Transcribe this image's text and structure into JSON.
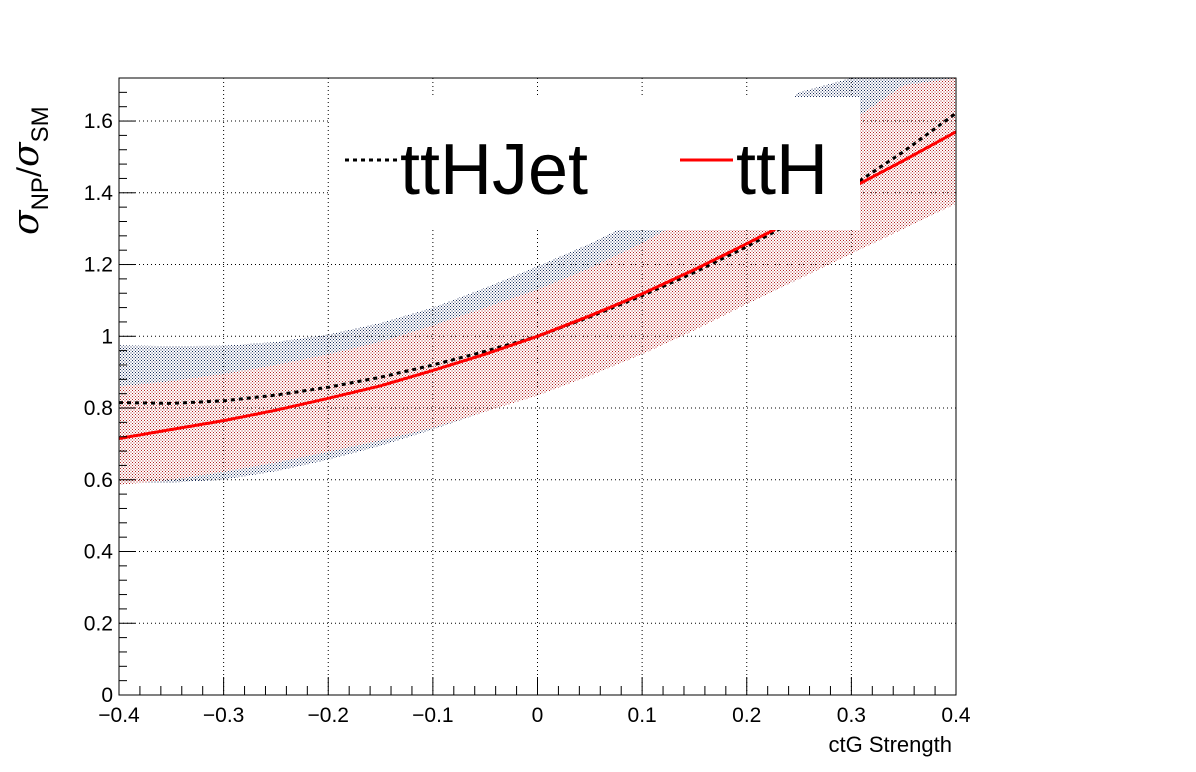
{
  "chart_data": {
    "type": "line",
    "title": "",
    "xlabel": "ctG Strength",
    "ylabel": "σ_NP/σ_SM",
    "ylabel_parts": {
      "sigma": "σ",
      "np_sub": "NP",
      "slash": "/",
      "sm_sub": "SM"
    },
    "xlim": [
      -0.4,
      0.4
    ],
    "ylim": [
      0,
      1.72
    ],
    "grid": true,
    "legend_placement": "top",
    "x_ticks": [
      -0.4,
      -0.3,
      -0.2,
      -0.1,
      0,
      0.1,
      0.2,
      0.3,
      0.4
    ],
    "x_tick_labels": [
      "−0.4",
      "−0.3",
      "−0.2",
      "−0.1",
      "0",
      "0.1",
      "0.2",
      "0.3",
      "0.4"
    ],
    "y_ticks": [
      0,
      0.2,
      0.4,
      0.6,
      0.8,
      1,
      1.2,
      1.4,
      1.6
    ],
    "y_tick_labels": [
      "0",
      "0.2",
      "0.4",
      "0.6",
      "0.8",
      "1",
      "1.2",
      "1.4",
      "1.6"
    ],
    "x": [
      -0.4,
      -0.35,
      -0.3,
      -0.25,
      -0.2,
      -0.15,
      -0.1,
      -0.05,
      0,
      0.05,
      0.1,
      0.15,
      0.2,
      0.25,
      0.3,
      0.35,
      0.4
    ],
    "series": [
      {
        "name": "ttHJet",
        "style": "dotted",
        "color": "#000000",
        "band_color": "#1a2d5a",
        "values": [
          0.815,
          0.813,
          0.82,
          0.836,
          0.858,
          0.886,
          0.92,
          0.958,
          1.0,
          1.054,
          1.113,
          1.178,
          1.25,
          1.328,
          1.418,
          1.515,
          1.622
        ],
        "band_low": [
          0.59,
          0.592,
          0.6,
          0.624,
          0.656,
          0.695,
          0.74,
          0.79,
          0.842,
          0.898,
          0.958,
          1.02,
          1.09,
          1.16,
          1.238,
          1.31,
          1.38
        ],
        "band_high": [
          0.975,
          0.972,
          0.974,
          0.984,
          1.005,
          1.037,
          1.08,
          1.135,
          1.195,
          1.258,
          1.33,
          1.43,
          1.56,
          1.68,
          1.72,
          1.72,
          1.72
        ]
      },
      {
        "name": "ttH",
        "style": "solid",
        "color": "#ff0000",
        "band_color": "#b22222",
        "values": [
          0.715,
          0.74,
          0.765,
          0.794,
          0.827,
          0.862,
          0.905,
          0.95,
          1.0,
          1.057,
          1.118,
          1.186,
          1.258,
          1.333,
          1.413,
          1.49,
          1.57
        ],
        "band_low": [
          0.585,
          0.6,
          0.622,
          0.648,
          0.678,
          0.71,
          0.745,
          0.79,
          0.835,
          0.89,
          0.95,
          1.017,
          1.09,
          1.16,
          1.23,
          1.3,
          1.37
        ],
        "band_high": [
          0.86,
          0.875,
          0.895,
          0.92,
          0.95,
          0.985,
          1.03,
          1.08,
          1.13,
          1.19,
          1.26,
          1.34,
          1.42,
          1.51,
          1.6,
          1.7,
          1.72
        ]
      }
    ]
  }
}
